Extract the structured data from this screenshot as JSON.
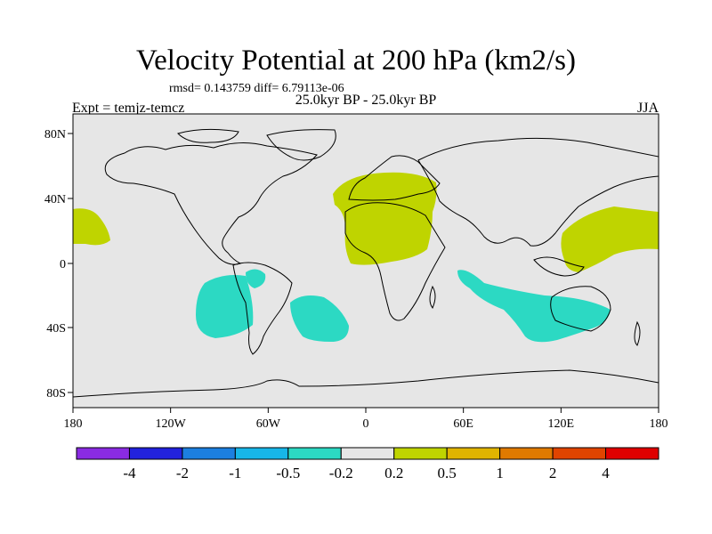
{
  "title": "Velocity Potential at 200 hPa (km2/s)",
  "stats": "rmsd= 0.143759 diff= 6.79113e-06",
  "subtitle": "25.0kyr BP - 25.0kyr BP",
  "experiment": "Expt = temjz-temcz",
  "season": "JJA",
  "colors": {
    "ocean": "#e6e6e6",
    "positive": "#bfd400",
    "negative": "#2cd9c3",
    "coastline": "#000000"
  },
  "axes": {
    "y_labels": [
      "80N",
      "40N",
      "0",
      "40S",
      "80S"
    ],
    "x_labels": [
      "180",
      "120W",
      "60W",
      "0",
      "60E",
      "120E",
      "180"
    ]
  },
  "colorbar": {
    "colors": [
      "#8a2be2",
      "#2222dd",
      "#1c7fe0",
      "#17b6e8",
      "#2cd9c3",
      "#e6e6e6",
      "#bfd400",
      "#e0b400",
      "#e07a00",
      "#e04400",
      "#e00000"
    ],
    "labels": [
      "-4",
      "-2",
      "-1",
      "-0.5",
      "-0.2",
      "0.2",
      "0.5",
      "1",
      "2",
      "4"
    ]
  }
}
